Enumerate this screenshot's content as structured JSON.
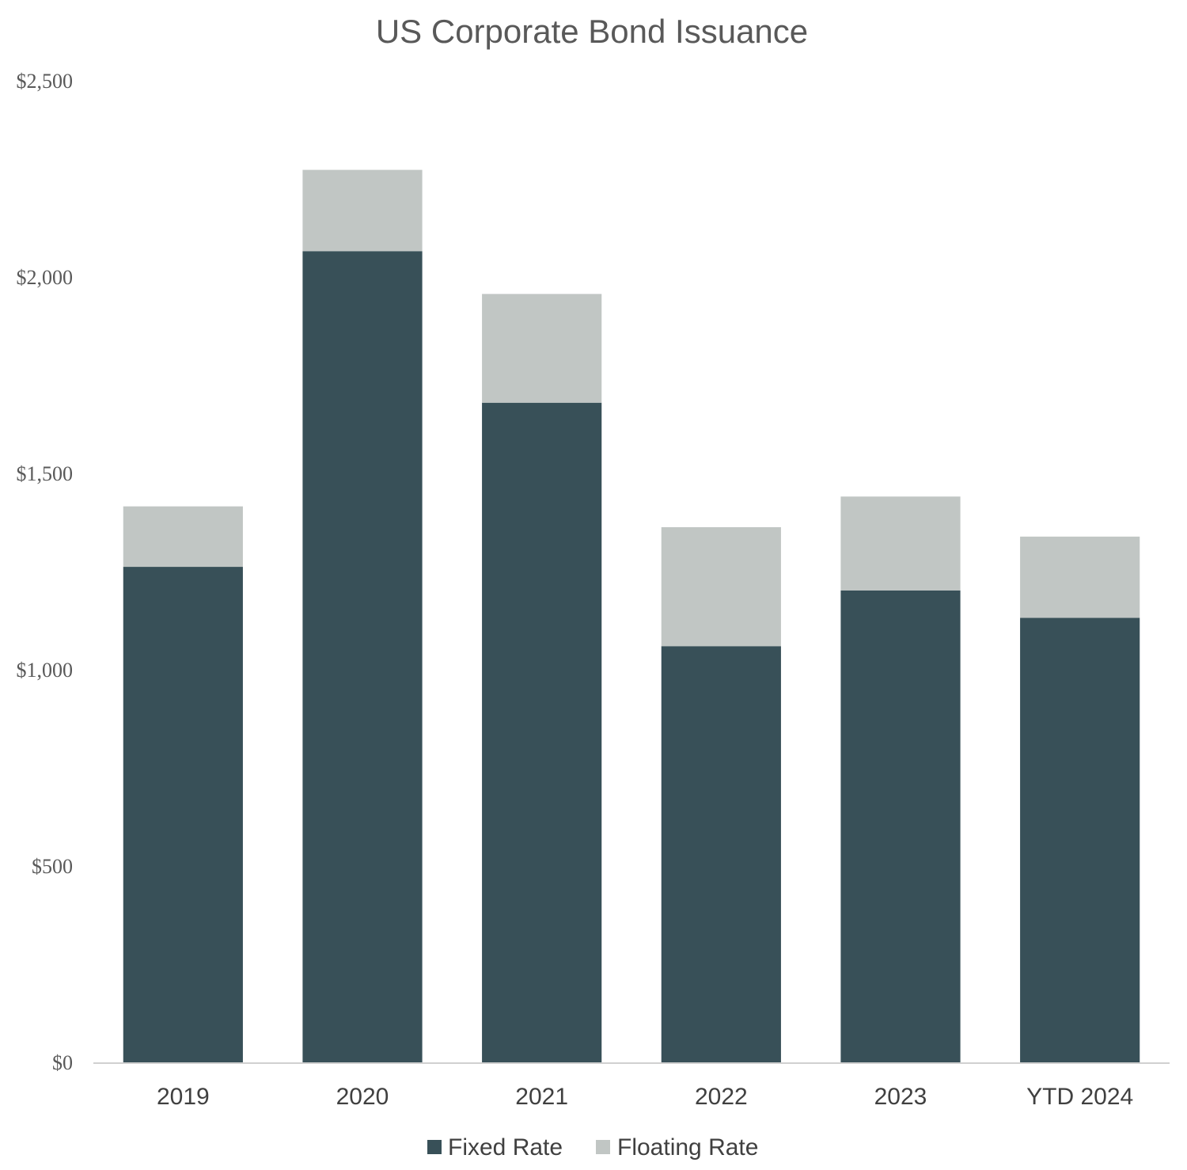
{
  "chart_data": {
    "type": "bar",
    "stacked": true,
    "title": "US Corporate Bond Issuance",
    "xlabel": "",
    "ylabel": "",
    "categories": [
      "2019",
      "2020",
      "2021",
      "2022",
      "2023",
      "YTD 2024"
    ],
    "series": [
      {
        "name": "Fixed Rate",
        "color": "#385058",
        "values": [
          1262,
          2066,
          1680,
          1060,
          1202,
          1132
        ]
      },
      {
        "name": "Floating Rate",
        "color": "#c1c6c4",
        "values": [
          154,
          207,
          277,
          303,
          239,
          207
        ]
      }
    ],
    "ylim": [
      0,
      2500
    ],
    "yticks": [
      0,
      500,
      1000,
      1500,
      2000,
      2500
    ],
    "ytick_labels": [
      "$0",
      "$500",
      "$1,000",
      "$1,500",
      "$2,000",
      "$2,500"
    ],
    "grid": false,
    "legend_position": "bottom"
  }
}
